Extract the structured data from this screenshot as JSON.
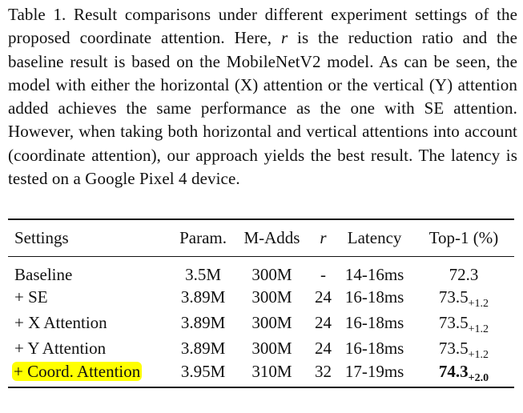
{
  "caption": {
    "part1": "Table 1. Result comparisons under different experiment settings of the proposed coordinate attention. Here, ",
    "symbol": "r",
    "part2": " is the reduction ratio and the baseline result is based on the MobileNetV2 model. As can be seen, the model with either the horizontal (X) attention or the vertical (Y) attention added achieves the same performance as the one with SE attention. However, when taking both horizontal and vertical attentions into account (coordinate attention), our approach yields the best result. The latency is tested on a Google Pixel 4 device."
  },
  "table": {
    "headers": {
      "settings": "Settings",
      "params": "Param.",
      "madds": "M-Adds",
      "r": "r",
      "latency": "Latency",
      "top1": "Top-1 (%)"
    },
    "rows": [
      {
        "settings": "Baseline",
        "params": "3.5M",
        "madds": "300M",
        "r": "-",
        "latency": "14-16ms",
        "top1": "72.3",
        "delta": ""
      },
      {
        "settings": "+ SE",
        "params": "3.89M",
        "madds": "300M",
        "r": "24",
        "latency": "16-18ms",
        "top1": "73.5",
        "delta": "+1.2"
      },
      {
        "settings": "+ X Attention",
        "params": "3.89M",
        "madds": "300M",
        "r": "24",
        "latency": "16-18ms",
        "top1": "73.5",
        "delta": "+1.2"
      },
      {
        "settings": "+ Y Attention",
        "params": "3.89M",
        "madds": "300M",
        "r": "24",
        "latency": "16-18ms",
        "top1": "73.5",
        "delta": "+1.2"
      },
      {
        "settings": "+ Coord. Attention",
        "params": "3.95M",
        "madds": "310M",
        "r": "32",
        "latency": "17-19ms",
        "top1": "74.3",
        "delta": "+2.0"
      }
    ]
  },
  "colors": {
    "highlight": "#ffff00",
    "text": "#111111"
  }
}
